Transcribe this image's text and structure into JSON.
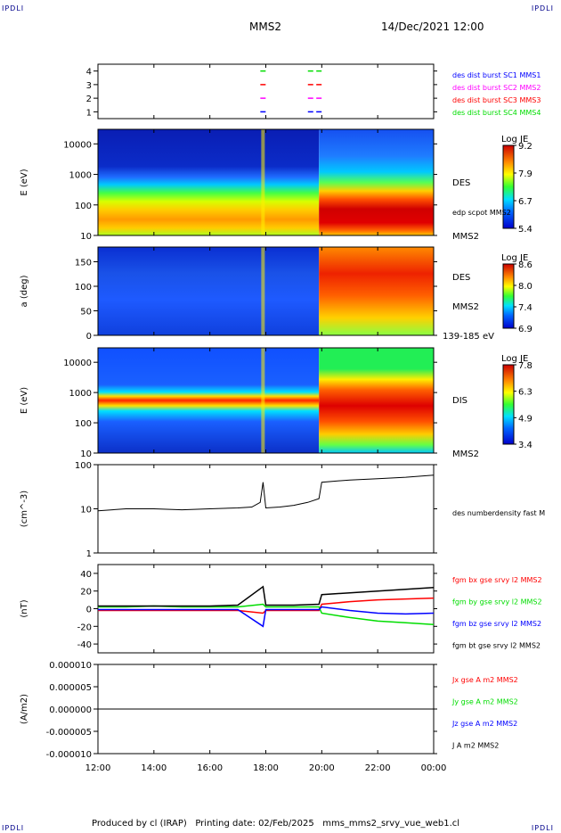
{
  "corners": {
    "tl": "IPDLI",
    "tr": "IPDLI",
    "bl": "IPDLI",
    "br": "IPDLI"
  },
  "header": {
    "mission": "MMS2",
    "date": "14/Dec/2021 12:00"
  },
  "footer": {
    "text": "Produced by cl (IRAP)   Printing date: 02/Feb/2025   mms_mms2_srvy_vue_web1.cl"
  },
  "colors": {
    "blue": "#0000ff",
    "magenta": "#ff00ff",
    "red": "#ff0000",
    "green": "#00dd00",
    "black": "#000000"
  },
  "chart_data": [
    {
      "type": "scatter",
      "panel": "burst-flags",
      "yticks": [
        "1",
        "2",
        "3",
        "4"
      ],
      "ylim": [
        0.5,
        4.5
      ],
      "series": [
        {
          "name": "des dist burst SC1 MMS1",
          "color": "blue",
          "level": 1
        },
        {
          "name": "des dist burst SC2 MMS2",
          "color": "magenta",
          "level": 2
        },
        {
          "name": "des dist burst SC3 MMS3",
          "color": "red",
          "level": 3
        },
        {
          "name": "des dist burst SC4 MMS4",
          "color": "green",
          "level": 4
        }
      ],
      "x_hours": [
        17.9,
        19.6,
        19.9
      ]
    },
    {
      "type": "heatmap",
      "panel": "des-energy",
      "ylabel": "E (eV)",
      "yscale": "log",
      "ylim": [
        10,
        30000
      ],
      "yticks": [
        "10",
        "100",
        "1000",
        "10000"
      ],
      "right_labels": [
        "DES",
        "edp scpot MMS2",
        "MMS2"
      ],
      "colorbar": {
        "title": "Log JE",
        "ticks": [
          "9.2",
          "7.9",
          "6.7",
          "5.4"
        ]
      }
    },
    {
      "type": "heatmap",
      "panel": "des-pitch",
      "ylabel": "a (deg)",
      "ylim": [
        0,
        180
      ],
      "yticks": [
        "0",
        "50",
        "100",
        "150"
      ],
      "right_labels": [
        "DES",
        "MMS2",
        "139-185 eV"
      ],
      "colorbar": {
        "title": "Log JE",
        "ticks": [
          "8.6",
          "8.0",
          "7.4",
          "6.9"
        ]
      }
    },
    {
      "type": "heatmap",
      "panel": "dis-energy",
      "ylabel": "E (eV)",
      "yscale": "log",
      "ylim": [
        10,
        30000
      ],
      "yticks": [
        "10",
        "100",
        "1000",
        "10000"
      ],
      "right_labels": [
        "DIS",
        "MMS2"
      ],
      "colorbar": {
        "title": "Log JE",
        "ticks": [
          "7.8",
          "6.3",
          "4.9",
          "3.4"
        ]
      }
    },
    {
      "type": "line",
      "panel": "density",
      "ylabel": "(cm^-3)",
      "yscale": "log",
      "ylim": [
        1,
        100
      ],
      "yticks": [
        "1",
        "10",
        "100"
      ],
      "series": [
        {
          "name": "des numberdensity fast M",
          "color": "black",
          "x": [
            12.0,
            13.0,
            14.0,
            15.0,
            16.0,
            17.0,
            17.5,
            17.8,
            17.9,
            18.0,
            18.5,
            19.0,
            19.5,
            19.9,
            20.0,
            21.0,
            22.0,
            23.0,
            24.0
          ],
          "y": [
            9.0,
            10.0,
            10.0,
            9.5,
            10.0,
            10.5,
            11.0,
            14.0,
            40.0,
            10.5,
            11.0,
            12.0,
            14.0,
            17.0,
            40.0,
            45.0,
            48.0,
            52.0,
            58.0
          ]
        }
      ]
    },
    {
      "type": "line",
      "panel": "magnetic-field",
      "ylabel": "(nT)",
      "ylim": [
        -50,
        50
      ],
      "yticks": [
        "-40",
        "-20",
        "0",
        "20",
        "40"
      ],
      "series": [
        {
          "name": "fgm bx gse srvy l2 MMS2",
          "color": "red",
          "x": [
            12,
            13,
            14,
            15,
            16,
            17,
            17.9,
            18,
            19,
            19.9,
            20,
            21,
            22,
            23,
            24
          ],
          "y": [
            -2,
            -2,
            -2,
            -2,
            -2,
            -2,
            -5,
            -2,
            -2,
            -2,
            5,
            8,
            10,
            11,
            12
          ]
        },
        {
          "name": "fgm by gse srvy l2 MMS2",
          "color": "green",
          "x": [
            12,
            13,
            14,
            15,
            16,
            17,
            17.9,
            18,
            19,
            19.9,
            20,
            21,
            22,
            23,
            24
          ],
          "y": [
            2,
            2,
            3,
            2,
            2,
            2,
            5,
            2,
            2,
            2,
            -5,
            -10,
            -14,
            -16,
            -18
          ]
        },
        {
          "name": "fgm bz gse srvy l2 MMS2",
          "color": "blue",
          "x": [
            12,
            13,
            14,
            15,
            16,
            17,
            17.9,
            18,
            19,
            19.9,
            20,
            21,
            22,
            23,
            24
          ],
          "y": [
            -1,
            -1,
            -1,
            -1,
            -1,
            -1,
            -20,
            -1,
            -1,
            -1,
            2,
            -2,
            -5,
            -6,
            -5
          ]
        },
        {
          "name": "fgm bt gse srvy l2 MMS2",
          "color": "black",
          "x": [
            12,
            13,
            14,
            15,
            16,
            17,
            17.9,
            18,
            19,
            19.9,
            20,
            21,
            22,
            23,
            24
          ],
          "y": [
            3,
            3,
            3,
            3,
            3,
            4,
            25,
            4,
            4,
            5,
            16,
            18,
            20,
            22,
            24
          ]
        }
      ]
    },
    {
      "type": "line",
      "panel": "current",
      "ylabel": "(A/m2)",
      "ylim": [
        -1e-05,
        1e-05
      ],
      "yticks": [
        "-0.000010",
        "-0.000005",
        "0.000000",
        "0.000005",
        "0.000010"
      ],
      "series": [
        {
          "name": "Jx gse A m2 MMS2",
          "color": "red",
          "x": [
            12,
            24
          ],
          "y": [
            0,
            0
          ]
        },
        {
          "name": "Jy gse A m2 MMS2",
          "color": "green",
          "x": [
            12,
            24
          ],
          "y": [
            0,
            0
          ]
        },
        {
          "name": "Jz gse A m2 MMS2",
          "color": "blue",
          "x": [
            12,
            24
          ],
          "y": [
            0,
            0
          ]
        },
        {
          "name": "J A m2 MMS2",
          "color": "black",
          "x": [
            12,
            24
          ],
          "y": [
            0,
            0
          ]
        }
      ]
    }
  ],
  "xaxis": {
    "ticks": [
      "12:00",
      "14:00",
      "16:00",
      "18:00",
      "20:00",
      "22:00",
      "00:00"
    ],
    "hours": [
      12,
      14,
      16,
      18,
      20,
      22,
      24
    ]
  }
}
